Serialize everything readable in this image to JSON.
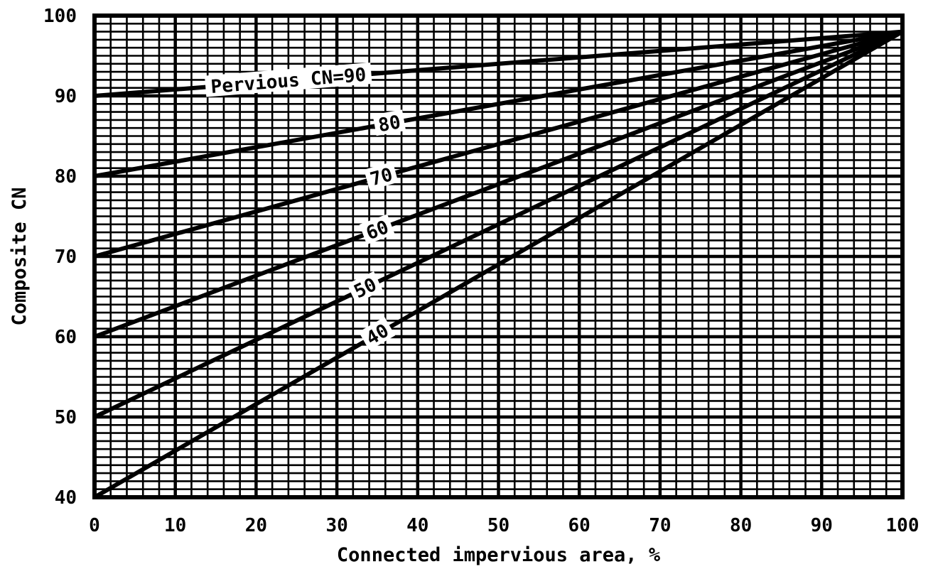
{
  "chart_data": {
    "type": "line",
    "title": "",
    "xlabel": "Connected impervious area, %",
    "ylabel": "Composite CN",
    "xlim": [
      0,
      100
    ],
    "ylim": [
      40,
      100
    ],
    "x_ticks": [
      "0",
      "10",
      "20",
      "30",
      "40",
      "50",
      "60",
      "70",
      "80",
      "90",
      "100"
    ],
    "y_ticks": [
      "40",
      "50",
      "60",
      "70",
      "80",
      "90",
      "100"
    ],
    "grid": true,
    "x": [
      0,
      100
    ],
    "series": [
      {
        "name": "Pervious CN=90",
        "values": [
          90,
          98
        ]
      },
      {
        "name": "80",
        "values": [
          80,
          98
        ]
      },
      {
        "name": "70",
        "values": [
          70,
          98
        ]
      },
      {
        "name": "60",
        "values": [
          60,
          98
        ]
      },
      {
        "name": "50",
        "values": [
          50,
          98
        ]
      },
      {
        "name": "40",
        "values": [
          40,
          98
        ]
      }
    ],
    "line_color": "#000000",
    "grid_color": "#000000"
  }
}
